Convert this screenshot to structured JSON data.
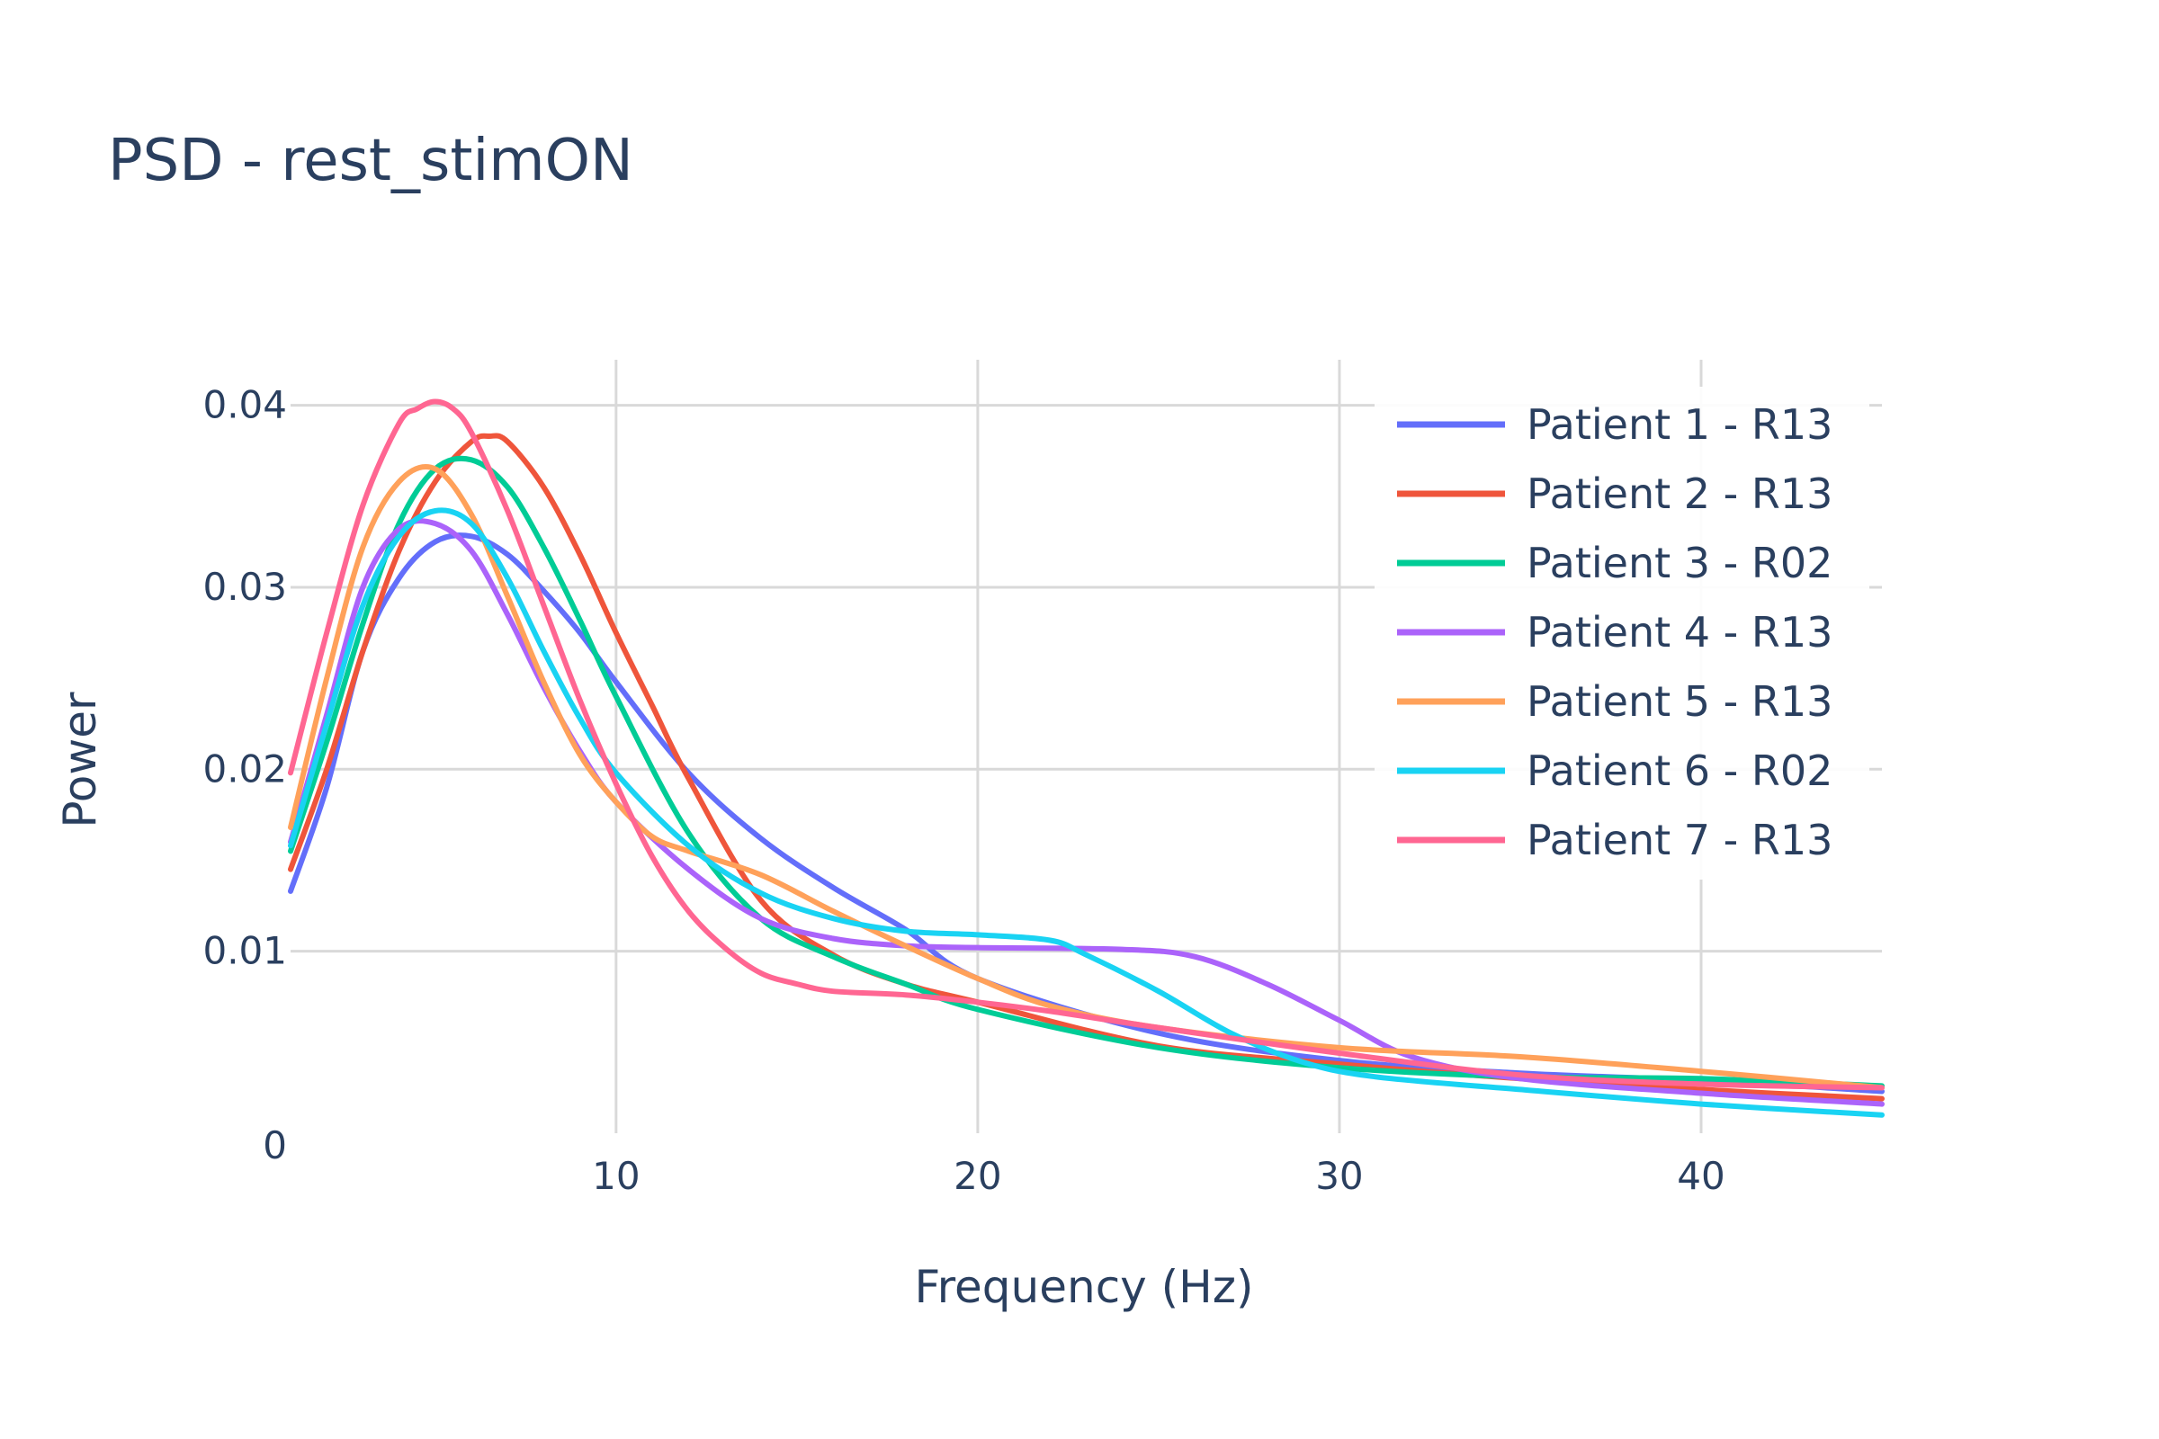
{
  "chart_data": {
    "type": "line",
    "title": "PSD - rest_stimON",
    "xlabel": "Frequency (Hz)",
    "ylabel": "Power",
    "xlim": [
      1,
      45
    ],
    "ylim": [
      0,
      0.0425
    ],
    "xticks": [
      10,
      20,
      30,
      40
    ],
    "xtick_labels": [
      "10",
      "20",
      "30",
      "40"
    ],
    "yticks": [
      0,
      0.01,
      0.02,
      0.03,
      0.04
    ],
    "ytick_labels": [
      "0",
      "0.01",
      "0.02",
      "0.03",
      "0.04"
    ],
    "grid": true,
    "legend_position": "top-right",
    "series": [
      {
        "name": "Patient 1 - R13",
        "color": "#636efa",
        "x": [
          1,
          2,
          3,
          4,
          5,
          6,
          7,
          8,
          9,
          10,
          12,
          14,
          16,
          18,
          20,
          25,
          30,
          35,
          40,
          45
        ],
        "y": [
          0.0133,
          0.019,
          0.0265,
          0.0305,
          0.0325,
          0.0328,
          0.0318,
          0.0298,
          0.0275,
          0.0248,
          0.0198,
          0.0162,
          0.0135,
          0.0112,
          0.0085,
          0.0055,
          0.004,
          0.0033,
          0.0029,
          0.0023
        ]
      },
      {
        "name": "Patient 2 - R13",
        "color": "#ef553b",
        "x": [
          1,
          2,
          3,
          4,
          5,
          6,
          6.5,
          7,
          8,
          9,
          10,
          11,
          12,
          14,
          16,
          18,
          20,
          25,
          30,
          35,
          40,
          45
        ],
        "y": [
          0.0145,
          0.02,
          0.0265,
          0.032,
          0.0358,
          0.038,
          0.0383,
          0.038,
          0.0355,
          0.0318,
          0.0275,
          0.0235,
          0.0195,
          0.0128,
          0.0098,
          0.0082,
          0.0072,
          0.0048,
          0.0038,
          0.003,
          0.0024,
          0.0019
        ]
      },
      {
        "name": "Patient 3 - R02",
        "color": "#00cc96",
        "x": [
          1,
          2,
          3,
          4,
          5,
          6,
          7,
          8,
          9,
          10,
          12,
          14,
          16,
          18,
          20,
          25,
          30,
          35,
          40,
          45
        ],
        "y": [
          0.0155,
          0.0215,
          0.028,
          0.0335,
          0.0365,
          0.037,
          0.0355,
          0.0322,
          0.0282,
          0.024,
          0.0165,
          0.0118,
          0.0097,
          0.0082,
          0.0068,
          0.0047,
          0.0036,
          0.0031,
          0.003,
          0.0026
        ]
      },
      {
        "name": "Patient 4 - R13",
        "color": "#ab63fa",
        "x": [
          1,
          2,
          3,
          4,
          5,
          6,
          7,
          8,
          9,
          10,
          12,
          14,
          16,
          18,
          20,
          24,
          26,
          28,
          30,
          32,
          35,
          40,
          45
        ],
        "y": [
          0.016,
          0.023,
          0.03,
          0.0332,
          0.0335,
          0.032,
          0.0285,
          0.0245,
          0.021,
          0.0182,
          0.0145,
          0.0118,
          0.0107,
          0.0103,
          0.0102,
          0.0101,
          0.0097,
          0.0082,
          0.0062,
          0.0042,
          0.003,
          0.0022,
          0.0016
        ]
      },
      {
        "name": "Patient 5 - R13",
        "color": "#ffa15a",
        "x": [
          1,
          2,
          3,
          4,
          5,
          6,
          7,
          8,
          9,
          10,
          11,
          12,
          14,
          16,
          18,
          20,
          22,
          25,
          30,
          35,
          40,
          45
        ],
        "y": [
          0.0168,
          0.025,
          0.0322,
          0.0358,
          0.0365,
          0.034,
          0.0295,
          0.0248,
          0.0208,
          0.0182,
          0.0163,
          0.0155,
          0.0142,
          0.0122,
          0.0103,
          0.0085,
          0.007,
          0.0058,
          0.0047,
          0.0042,
          0.0034,
          0.0025
        ]
      },
      {
        "name": "Patient 6 - R02",
        "color": "#19d3f3",
        "x": [
          1,
          2,
          3,
          4,
          5,
          6,
          7,
          8,
          9,
          10,
          12,
          14,
          16,
          18,
          20,
          22,
          23,
          25,
          27,
          29,
          31,
          35,
          40,
          45
        ],
        "y": [
          0.0158,
          0.0225,
          0.029,
          0.0328,
          0.0342,
          0.0335,
          0.0305,
          0.0265,
          0.0228,
          0.0198,
          0.0158,
          0.0132,
          0.0118,
          0.0111,
          0.0109,
          0.0106,
          0.0098,
          0.0078,
          0.0055,
          0.0039,
          0.0031,
          0.0024,
          0.0016,
          0.001
        ]
      },
      {
        "name": "Patient 7 - R13",
        "color": "#ff6692",
        "x": [
          1,
          2,
          3,
          4,
          4.5,
          5,
          5.5,
          6,
          7,
          8,
          9,
          10,
          11,
          12,
          13,
          14,
          15,
          16,
          18,
          20,
          22,
          25,
          30,
          35,
          40,
          45
        ],
        "y": [
          0.0198,
          0.0275,
          0.0345,
          0.039,
          0.0398,
          0.0402,
          0.0398,
          0.0385,
          0.0342,
          0.029,
          0.0238,
          0.0192,
          0.0152,
          0.0122,
          0.0102,
          0.0088,
          0.0082,
          0.0078,
          0.0076,
          0.0072,
          0.0067,
          0.0058,
          0.0044,
          0.0032,
          0.0027,
          0.0025
        ]
      }
    ]
  }
}
